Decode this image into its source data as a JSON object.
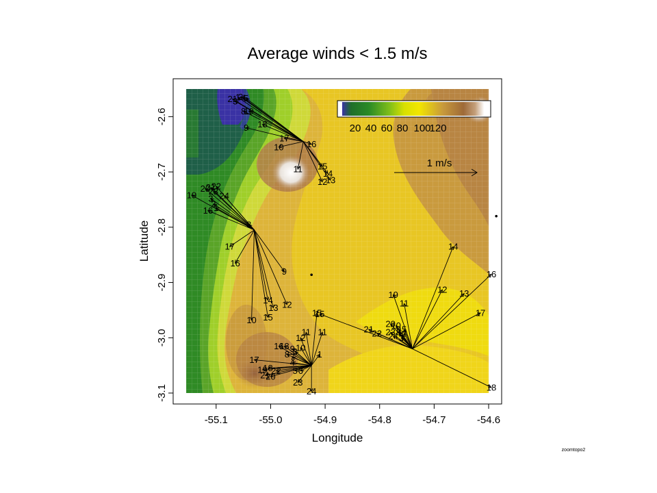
{
  "chart_data": {
    "type": "map",
    "title": "Average winds < 1.5 m/s",
    "xlabel": "Longitude",
    "ylabel": "Latitude",
    "xlim": [
      -55.155,
      -54.6
    ],
    "ylim": [
      -3.1,
      -2.55
    ],
    "x_ticks": [
      -55.1,
      -55.0,
      -54.9,
      -54.8,
      -54.7,
      -54.6
    ],
    "x_tick_labels": [
      "-55.1",
      "-55.0",
      "-54.9",
      "-54.8",
      "-54.7",
      "-54.6"
    ],
    "y_ticks": [
      -2.6,
      -2.7,
      -2.8,
      -2.9,
      -3.0,
      -3.1
    ],
    "y_tick_labels": [
      "-2.6",
      "-2.7",
      "-2.8",
      "-2.9",
      "-3.0",
      "-3.1"
    ],
    "colorbar": {
      "ticks": [
        "20",
        "40",
        "60",
        "80",
        "100",
        "120"
      ],
      "colors": [
        "#3a32a4",
        "#1f6e2a",
        "#2a8a26",
        "#7fbe1a",
        "#d8e000",
        "#f2e600",
        "#c89a3c",
        "#9e6a38",
        "#c4a07c",
        "#ffffff"
      ]
    },
    "reference_arrow": {
      "label": "1 m/s"
    },
    "stations": [
      {
        "id": "S1",
        "lon": -54.94,
        "lat": -2.645,
        "vectors": [
          {
            "h": "21",
            "lon": -55.07,
            "lat": -2.568
          },
          {
            "h": "1",
            "lon": -55.06,
            "lat": -2.565
          },
          {
            "h": "2",
            "lon": -55.055,
            "lat": -2.564
          },
          {
            "h": "4",
            "lon": -55.05,
            "lat": -2.566
          },
          {
            "h": "5",
            "lon": -55.045,
            "lat": -2.567
          },
          {
            "h": "3",
            "lon": -55.065,
            "lat": -2.572
          },
          {
            "h": "8",
            "lon": -55.05,
            "lat": -2.59
          },
          {
            "h": "19",
            "lon": -55.04,
            "lat": -2.59
          },
          {
            "h": "18",
            "lon": -55.015,
            "lat": -2.614
          },
          {
            "h": "9",
            "lon": -55.045,
            "lat": -2.62
          },
          {
            "h": "17",
            "lon": -54.975,
            "lat": -2.639
          },
          {
            "h": "10",
            "lon": -54.985,
            "lat": -2.655
          },
          {
            "h": "16",
            "lon": -54.925,
            "lat": -2.65
          },
          {
            "h": "11",
            "lon": -54.95,
            "lat": -2.695
          },
          {
            "h": "15",
            "lon": -54.905,
            "lat": -2.69
          },
          {
            "h": "14",
            "lon": -54.895,
            "lat": -2.703
          },
          {
            "h": "13",
            "lon": -54.89,
            "lat": -2.715
          },
          {
            "h": "12",
            "lon": -54.905,
            "lat": -2.718
          }
        ]
      },
      {
        "id": "S2",
        "lon": -55.03,
        "lat": -2.805,
        "vectors": [
          {
            "h": "19",
            "lon": -55.145,
            "lat": -2.742
          },
          {
            "h": "20",
            "lon": -55.12,
            "lat": -2.73
          },
          {
            "h": "21",
            "lon": -55.11,
            "lat": -2.728
          },
          {
            "h": "22",
            "lon": -55.1,
            "lat": -2.726
          },
          {
            "h": "23",
            "lon": -55.105,
            "lat": -2.735
          },
          {
            "h": "24",
            "lon": -55.085,
            "lat": -2.743
          },
          {
            "h": "3",
            "lon": -55.11,
            "lat": -2.748
          },
          {
            "h": "2",
            "lon": -55.105,
            "lat": -2.758
          },
          {
            "h": "1",
            "lon": -55.1,
            "lat": -2.765
          },
          {
            "h": "16",
            "lon": -55.115,
            "lat": -2.77
          },
          {
            "h": "8",
            "lon": -55.04,
            "lat": -2.795
          },
          {
            "h": "17",
            "lon": -55.075,
            "lat": -2.835
          },
          {
            "h": "16",
            "lon": -55.065,
            "lat": -2.865
          },
          {
            "h": "9",
            "lon": -54.975,
            "lat": -2.88
          },
          {
            "h": "12",
            "lon": -54.97,
            "lat": -2.94
          },
          {
            "h": "14",
            "lon": -55.005,
            "lat": -2.932
          },
          {
            "h": "13",
            "lon": -54.995,
            "lat": -2.946
          },
          {
            "h": "10",
            "lon": -55.035,
            "lat": -2.968
          },
          {
            "h": "15",
            "lon": -55.005,
            "lat": -2.963
          }
        ]
      },
      {
        "id": "S3",
        "lon": -54.925,
        "lat": -3.05,
        "vectors": [
          {
            "h": "15",
            "lon": -54.915,
            "lat": -2.955
          },
          {
            "h": "11",
            "lon": -54.905,
            "lat": -2.99
          },
          {
            "h": "11",
            "lon": -54.935,
            "lat": -2.99
          },
          {
            "h": "12",
            "lon": -54.945,
            "lat": -3.0
          },
          {
            "h": "1",
            "lon": -54.91,
            "lat": -3.03
          },
          {
            "h": "10",
            "lon": -54.945,
            "lat": -3.018
          },
          {
            "h": "16",
            "lon": -54.985,
            "lat": -3.015
          },
          {
            "h": "18",
            "lon": -54.975,
            "lat": -3.015
          },
          {
            "h": "9",
            "lon": -54.96,
            "lat": -3.02
          },
          {
            "h": "3",
            "lon": -54.955,
            "lat": -3.025
          },
          {
            "h": "8",
            "lon": -54.97,
            "lat": -3.03
          },
          {
            "h": "7",
            "lon": -54.96,
            "lat": -3.035
          },
          {
            "h": "17",
            "lon": -55.03,
            "lat": -3.04
          },
          {
            "h": "4",
            "lon": -54.96,
            "lat": -3.045
          },
          {
            "h": "5",
            "lon": -54.955,
            "lat": -3.06
          },
          {
            "h": "6",
            "lon": -54.945,
            "lat": -3.06
          },
          {
            "h": "18",
            "lon": -55.005,
            "lat": -3.055
          },
          {
            "h": "19",
            "lon": -55.015,
            "lat": -3.058
          },
          {
            "h": "22",
            "lon": -54.99,
            "lat": -3.06
          },
          {
            "h": "21",
            "lon": -55.01,
            "lat": -3.068
          },
          {
            "h": "20",
            "lon": -55.0,
            "lat": -3.07
          },
          {
            "h": "23",
            "lon": -54.95,
            "lat": -3.081
          },
          {
            "h": "24",
            "lon": -54.925,
            "lat": -3.097
          }
        ]
      },
      {
        "id": "S4",
        "lon": -54.74,
        "lat": -3.02,
        "vectors": [
          {
            "h": "19",
            "lon": -54.775,
            "lat": -2.922
          },
          {
            "h": "11",
            "lon": -54.755,
            "lat": -2.938
          },
          {
            "h": "14",
            "lon": -54.665,
            "lat": -2.835
          },
          {
            "h": "12",
            "lon": -54.685,
            "lat": -2.913
          },
          {
            "h": "13",
            "lon": -54.645,
            "lat": -2.92
          },
          {
            "h": "16",
            "lon": -54.595,
            "lat": -2.885
          },
          {
            "h": "17",
            "lon": -54.615,
            "lat": -2.955
          },
          {
            "h": "18",
            "lon": -54.595,
            "lat": -3.09
          },
          {
            "h": "20",
            "lon": -54.78,
            "lat": -2.975
          },
          {
            "h": "10",
            "lon": -54.77,
            "lat": -2.978
          },
          {
            "h": "9",
            "lon": -54.765,
            "lat": -2.985
          },
          {
            "h": "5",
            "lon": -54.755,
            "lat": -2.985
          },
          {
            "h": "8",
            "lon": -54.765,
            "lat": -2.99
          },
          {
            "h": "2",
            "lon": -54.755,
            "lat": -2.992
          },
          {
            "h": "4",
            "lon": -54.76,
            "lat": -2.995
          },
          {
            "h": "3",
            "lon": -54.76,
            "lat": -3.0
          },
          {
            "h": "23",
            "lon": -54.78,
            "lat": -2.99
          },
          {
            "h": "21",
            "lon": -54.82,
            "lat": -2.985
          },
          {
            "h": "22",
            "lon": -54.805,
            "lat": -2.992
          },
          {
            "h": "24",
            "lon": -54.775,
            "lat": -2.997
          },
          {
            "h": "15",
            "lon": -54.91,
            "lat": -2.957
          }
        ]
      }
    ],
    "point_markers": [
      {
        "lon": -54.925,
        "lat": -2.886
      },
      {
        "lon": -54.586,
        "lat": -2.78
      }
    ]
  },
  "footer": "zoomtopo2"
}
